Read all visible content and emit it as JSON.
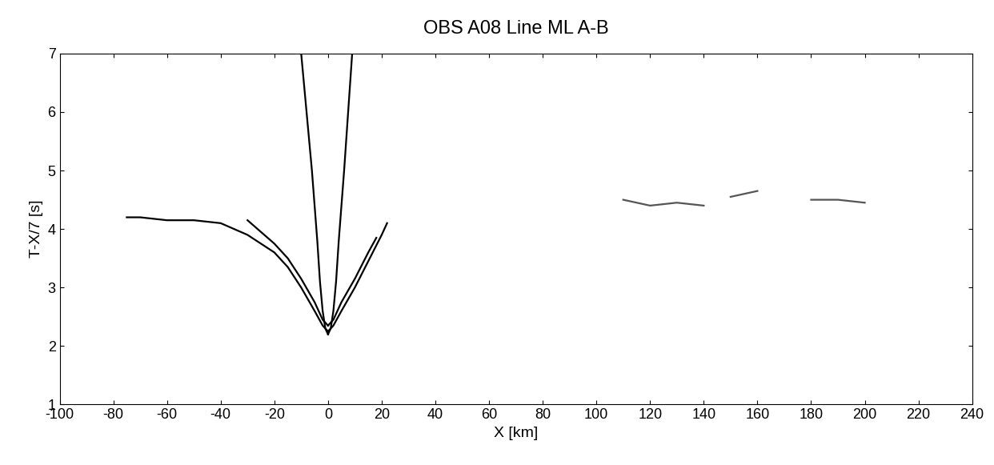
{
  "chart_data": {
    "type": "line",
    "title": "OBS A08 Line ML A-B",
    "x_label": "X [km]",
    "y_label": "T-X/7 [s]",
    "xlim": [
      -100,
      240
    ],
    "ylim": [
      1,
      7
    ],
    "xticks": [
      -100,
      -80,
      -60,
      -40,
      -20,
      0,
      20,
      40,
      60,
      80,
      100,
      120,
      140,
      160,
      180,
      200,
      220,
      240
    ],
    "yticks": [
      1,
      2,
      3,
      4,
      5,
      6,
      7
    ],
    "grid": false,
    "series": [
      {
        "color": "#000000",
        "x": [
          -75,
          -70,
          -60,
          -50,
          -40,
          -30,
          -20,
          -15,
          -10,
          -5,
          -2,
          0
        ],
        "values": [
          4.2,
          4.2,
          4.15,
          4.15,
          4.1,
          3.9,
          3.6,
          3.35,
          3.0,
          2.6,
          2.35,
          2.25
        ]
      },
      {
        "color": "#000000",
        "x": [
          0,
          2,
          5,
          10,
          15,
          20,
          22
        ],
        "values": [
          2.25,
          2.35,
          2.6,
          3.0,
          3.45,
          3.9,
          4.1
        ]
      },
      {
        "color": "#000000",
        "x": [
          -30,
          -25,
          -20,
          -15,
          -10,
          -5,
          -2,
          0
        ],
        "values": [
          4.15,
          3.95,
          3.75,
          3.5,
          3.15,
          2.75,
          2.45,
          2.35
        ]
      },
      {
        "color": "#000000",
        "x": [
          0,
          2,
          5,
          10,
          15,
          18
        ],
        "values": [
          2.35,
          2.45,
          2.75,
          3.15,
          3.6,
          3.85
        ]
      },
      {
        "color": "#000000",
        "x": [
          -10,
          -8,
          -6,
          -4,
          -3,
          -2,
          -1,
          0
        ],
        "values": [
          7.0,
          6.0,
          5.0,
          3.8,
          3.1,
          2.6,
          2.3,
          2.2
        ]
      },
      {
        "color": "#000000",
        "x": [
          0,
          1,
          2,
          3,
          4,
          6,
          9
        ],
        "values": [
          2.2,
          2.3,
          2.6,
          3.1,
          3.8,
          5.0,
          7.0
        ]
      },
      {
        "color": "#555555",
        "x": [
          110,
          120,
          130,
          140
        ],
        "values": [
          4.5,
          4.4,
          4.45,
          4.4
        ]
      },
      {
        "color": "#555555",
        "x": [
          150,
          155,
          160
        ],
        "values": [
          4.55,
          4.6,
          4.65
        ]
      },
      {
        "color": "#555555",
        "x": [
          180,
          190,
          200
        ],
        "values": [
          4.5,
          4.5,
          4.45
        ]
      }
    ]
  }
}
